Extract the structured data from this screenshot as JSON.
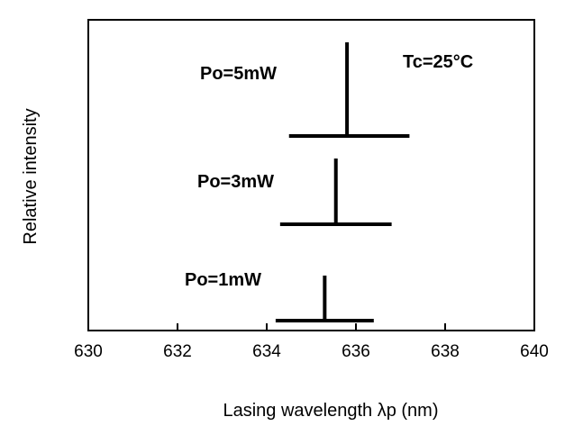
{
  "chart_data": {
    "type": "line",
    "title": "",
    "xlabel": "Lasing wavelength  λp (nm)",
    "ylabel": "Relative intensity",
    "xlim": [
      630,
      640
    ],
    "xticks": [
      "630",
      "632",
      "634",
      "636",
      "638",
      "640"
    ],
    "grid": false,
    "condition_label": "Tc=25°C",
    "series": [
      {
        "name": "Po=5mW",
        "peak_x": 635.8,
        "baseline_x_range": [
          634.5,
          637.2
        ]
      },
      {
        "name": "Po=3mW",
        "peak_x": 635.55,
        "baseline_x_range": [
          634.3,
          636.8
        ]
      },
      {
        "name": "Po=1mW",
        "peak_x": 635.3,
        "baseline_x_range": [
          634.2,
          636.4
        ]
      }
    ]
  }
}
